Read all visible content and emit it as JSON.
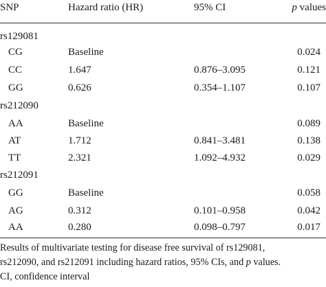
{
  "table": {
    "headers": {
      "snp": "SNP",
      "hr": "Hazard ratio (HR)",
      "ci": "95% CI",
      "p_italic": "p",
      "p_rest": " values"
    },
    "groups": [
      {
        "name": "rs129081",
        "rows": [
          {
            "genotype": "CG",
            "hr": "Baseline",
            "ci": "",
            "p": "0.024"
          },
          {
            "genotype": "CC",
            "hr": "1.647",
            "ci": "0.876–3.095",
            "p": "0.121"
          },
          {
            "genotype": "GG",
            "hr": "0.626",
            "ci": "0.354–1.107",
            "p": "0.107"
          }
        ]
      },
      {
        "name": "rs212090",
        "rows": [
          {
            "genotype": "AA",
            "hr": "Baseline",
            "ci": "",
            "p": "0.089"
          },
          {
            "genotype": "AT",
            "hr": "1.712",
            "ci": "0.841–3.481",
            "p": "0.138"
          },
          {
            "genotype": "TT",
            "hr": "2.321",
            "ci": "1.092–4.932",
            "p": "0.029"
          }
        ]
      },
      {
        "name": "rs212091",
        "rows": [
          {
            "genotype": "GG",
            "hr": "Baseline",
            "ci": "",
            "p": "0.058"
          },
          {
            "genotype": "AG",
            "hr": "0.312",
            "ci": "0.101–0.958",
            "p": "0.042"
          },
          {
            "genotype": "AA",
            "hr": "0.280",
            "ci": "0.098–0.797",
            "p": "0.017"
          }
        ]
      }
    ]
  },
  "caption": {
    "line1": "Results of multivariate testing for disease free survival of rs129081,",
    "line2_a": "rs212090, and rs212091 including hazard ratios, 95% CIs, and ",
    "line2_italic": "p",
    "line2_b": " values.",
    "line3": "CI, confidence interval"
  }
}
